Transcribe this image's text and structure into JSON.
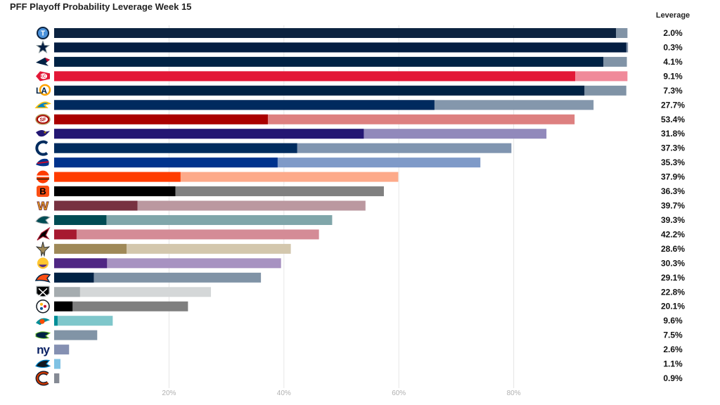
{
  "chart_data": {
    "type": "bar",
    "orientation": "horizontal",
    "title": "PFF Playoff Probability Leverage Week 15",
    "leverage_header": "Leverage",
    "xlim": [
      0,
      100
    ],
    "x_ticks": [
      "20%",
      "40%",
      "60%",
      "80%"
    ],
    "x_tick_values": [
      20,
      40,
      60,
      80
    ],
    "grid": "vertical",
    "series": [
      {
        "name": "",
        "values": [
          97.8,
          99.6,
          95.6,
          90.7,
          92.3,
          66.2,
          37.2,
          53.9,
          42.3,
          38.9,
          22.0,
          21.1,
          14.5,
          9.1,
          3.9,
          12.6,
          9.2,
          6.9,
          4.5,
          3.2,
          0.6,
          0,
          0,
          0,
          0
        ]
      },
      {
        "name": "",
        "values": [
          99.8,
          99.9,
          99.7,
          99.8,
          99.6,
          93.9,
          90.6,
          85.7,
          79.6,
          74.2,
          59.9,
          57.4,
          54.2,
          48.4,
          46.1,
          41.2,
          39.5,
          36.0,
          27.3,
          23.3,
          10.2,
          7.5,
          2.6,
          1.1,
          0.9
        ]
      }
    ],
    "teams": [
      {
        "team": "Titans",
        "leverage": "2.0%",
        "color": "#0c2340",
        "light": "#8193a6",
        "logo": "titans-logo"
      },
      {
        "team": "Cowboys",
        "leverage": "0.3%",
        "color": "#041e42",
        "light": "#7f8fa6",
        "logo": "cowboys-logo"
      },
      {
        "team": "Patriots",
        "leverage": "4.1%",
        "color": "#002244",
        "light": "#8093a6",
        "logo": "patriots-logo"
      },
      {
        "team": "Chiefs",
        "leverage": "9.1%",
        "color": "#e31837",
        "light": "#f08a9a",
        "logo": "chiefs-logo"
      },
      {
        "team": "Rams",
        "leverage": "7.3%",
        "color": "#002244",
        "light": "#8093a6",
        "logo": "rams-logo"
      },
      {
        "team": "Chargers",
        "leverage": "27.7%",
        "color": "#002a5e",
        "light": "#8497ac",
        "logo": "chargers-logo"
      },
      {
        "team": "49ers",
        "leverage": "53.4%",
        "color": "#aa0000",
        "light": "#dd8080",
        "logo": "49ers-logo"
      },
      {
        "team": "Ravens",
        "leverage": "31.8%",
        "color": "#241773",
        "light": "#9189bb",
        "logo": "ravens-logo"
      },
      {
        "team": "Colts",
        "leverage": "37.3%",
        "color": "#002c5f",
        "light": "#8095b0",
        "logo": "colts-logo"
      },
      {
        "team": "Bills",
        "leverage": "35.3%",
        "color": "#00338d",
        "light": "#7f9ac8",
        "logo": "bills-logo"
      },
      {
        "team": "Browns",
        "leverage": "37.9%",
        "color": "#ff3c00",
        "light": "#fdaa8a",
        "logo": "browns-logo"
      },
      {
        "team": "Bengals",
        "leverage": "36.3%",
        "color": "#000000",
        "light": "#808080",
        "logo": "bengals-logo"
      },
      {
        "team": "Washington",
        "leverage": "39.7%",
        "color": "#773141",
        "light": "#bb98a0",
        "logo": "washington-logo"
      },
      {
        "team": "Eagles",
        "leverage": "39.3%",
        "color": "#004c54",
        "light": "#80a6aa",
        "logo": "eagles-logo"
      },
      {
        "team": "Falcons",
        "leverage": "42.2%",
        "color": "#a71930",
        "light": "#d48b96",
        "logo": "falcons-logo"
      },
      {
        "team": "Saints",
        "leverage": "28.6%",
        "color": "#9f8958",
        "light": "#d3c7ad",
        "logo": "saints-logo"
      },
      {
        "team": "Vikings",
        "leverage": "30.3%",
        "color": "#4f2683",
        "light": "#a792c1",
        "logo": "vikings-logo"
      },
      {
        "team": "Broncos",
        "leverage": "29.1%",
        "color": "#002244",
        "light": "#8093a6",
        "logo": "broncos-logo"
      },
      {
        "team": "Raiders",
        "leverage": "22.8%",
        "color": "#a5acaf",
        "light": "#d4d7d8",
        "logo": "raiders-logo"
      },
      {
        "team": "Steelers",
        "leverage": "20.1%",
        "color": "#000000",
        "light": "#7f7f7f",
        "logo": "steelers-logo"
      },
      {
        "team": "Dolphins",
        "leverage": "9.6%",
        "color": "#008e97",
        "light": "#7fc7cb",
        "logo": "dolphins-logo"
      },
      {
        "team": "Seahawks",
        "leverage": "7.5%",
        "color": "#002244",
        "light": "#8194a6",
        "logo": "seahawks-logo"
      },
      {
        "team": "Giants",
        "leverage": "2.6%",
        "color": "#0b2265",
        "light": "#8590b2",
        "logo": "giants-logo"
      },
      {
        "team": "Panthers",
        "leverage": "1.1%",
        "color": "#0085ca",
        "light": "#7fc2e4",
        "logo": "panthers-logo"
      },
      {
        "team": "Bears",
        "leverage": "0.9%",
        "color": "#0b162a",
        "light": "#858a94",
        "logo": "bears-logo"
      }
    ]
  }
}
